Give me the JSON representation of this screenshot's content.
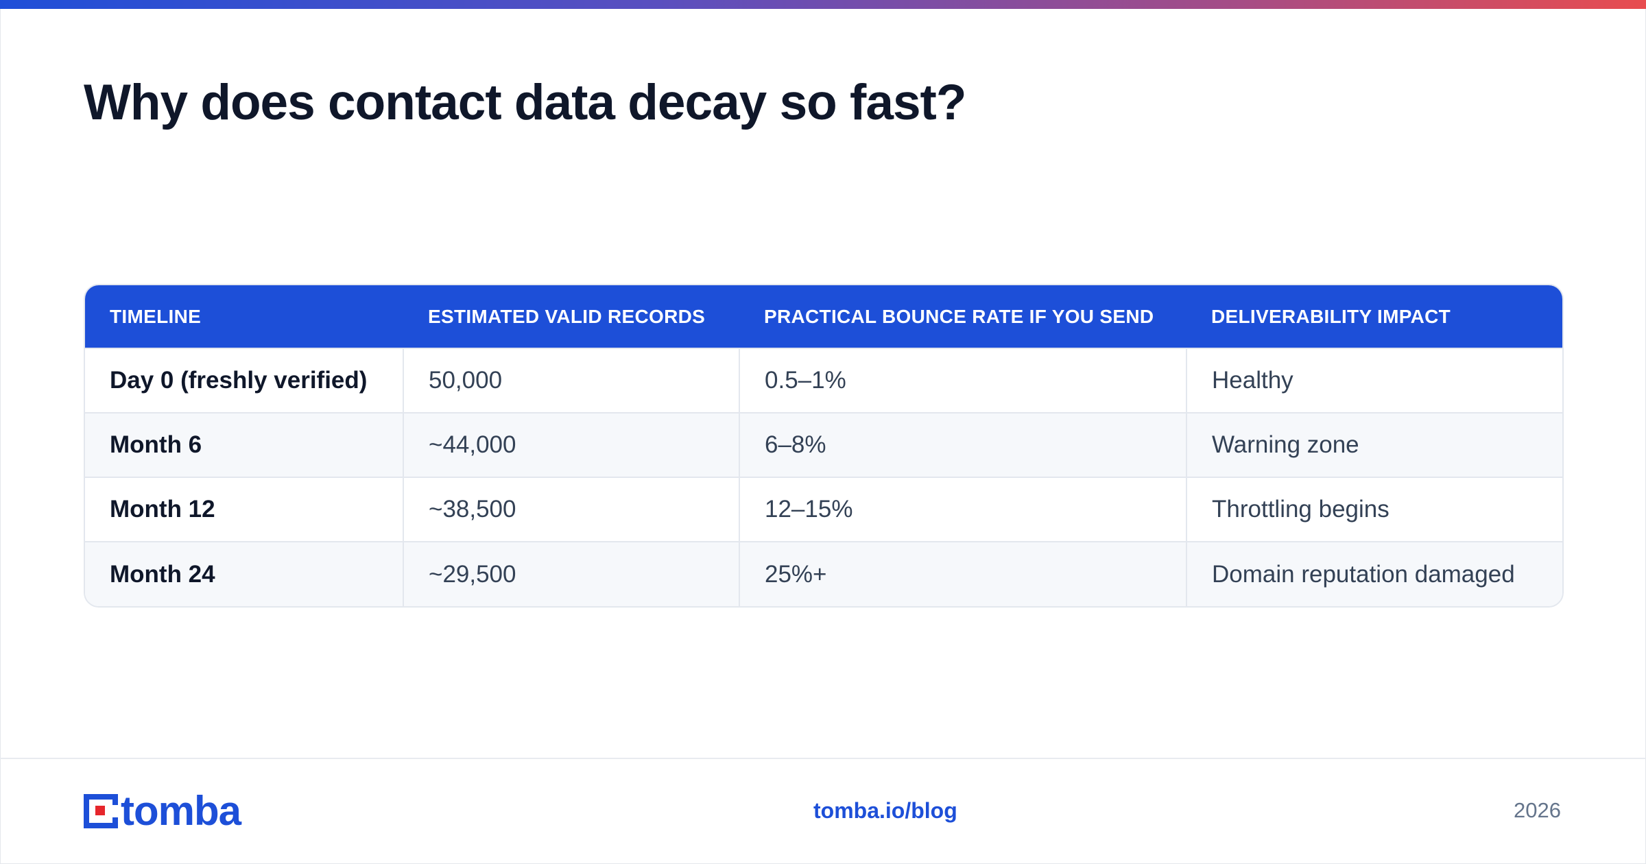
{
  "header": {
    "title": "Why does contact data decay so fast?"
  },
  "table": {
    "columns": [
      "TIMELINE",
      "ESTIMATED VALID RECORDS",
      "PRACTICAL BOUNCE RATE IF YOU SEND",
      "DELIVERABILITY IMPACT"
    ],
    "rows": [
      [
        "Day 0 (freshly verified)",
        "50,000",
        "0.5–1%",
        "Healthy"
      ],
      [
        "Month 6",
        "~44,000",
        "6–8%",
        "Warning zone"
      ],
      [
        "Month 12",
        "~38,500",
        "12–15%",
        "Throttling begins"
      ],
      [
        "Month 24",
        "~29,500",
        "25%+",
        "Domain reputation damaged"
      ]
    ]
  },
  "footer": {
    "logo_text": "tomba",
    "link": "tomba.io/blog",
    "year": "2026"
  },
  "colors": {
    "accent_blue": "#1d4fd8",
    "accent_red": "#e6262c",
    "title_text": "#0f172a",
    "gradient_start": "#1f4fd8",
    "gradient_end": "#e84c4f"
  },
  "icons": {
    "logo_mark": "tomba-logo-icon"
  }
}
